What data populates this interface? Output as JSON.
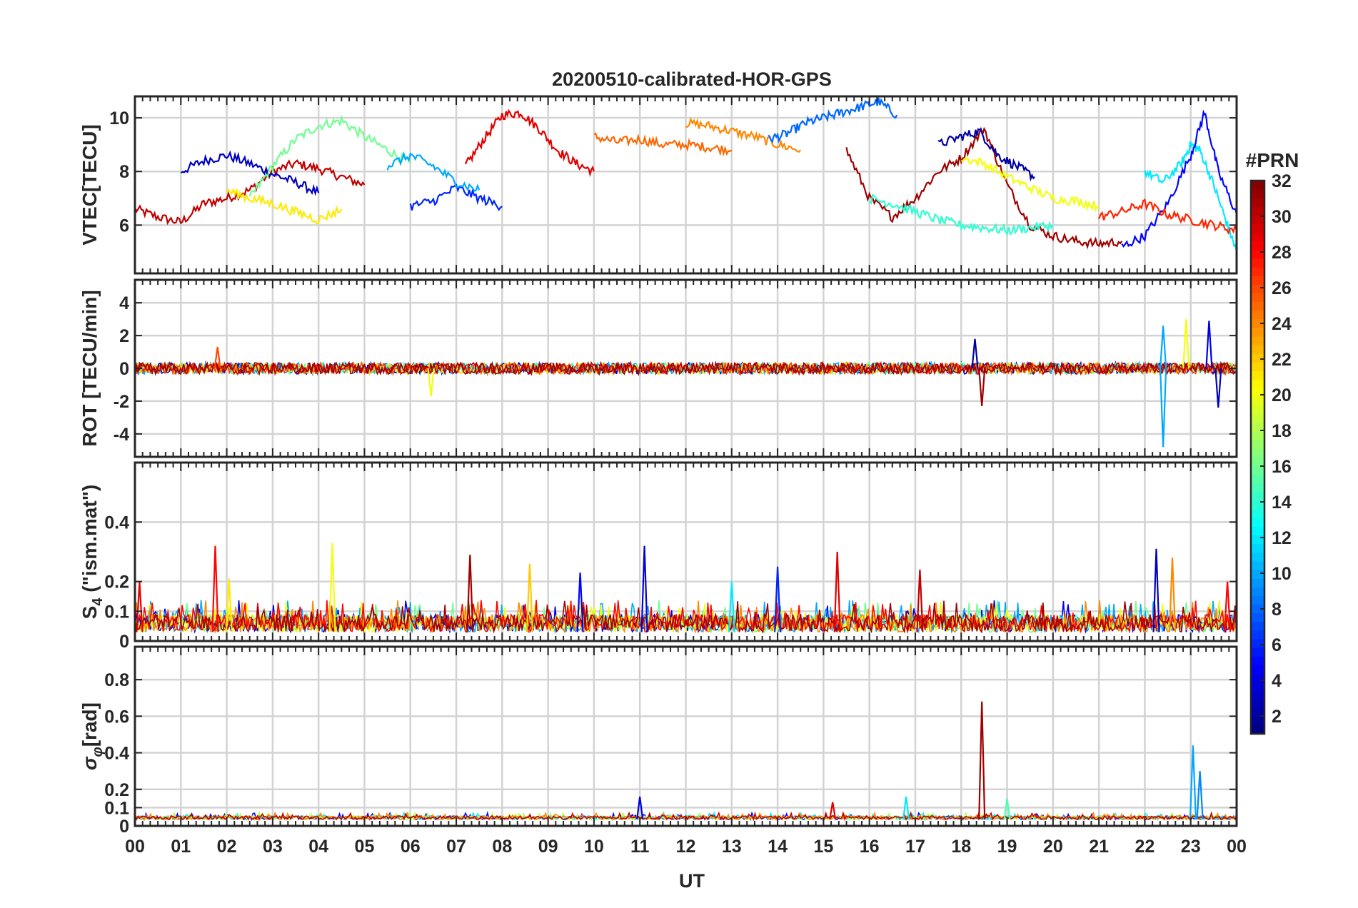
{
  "chart_data": {
    "type": "line",
    "title": "20200510-calibrated-HOR-GPS",
    "xlabel": "UT",
    "x_tick_labels": [
      "00",
      "01",
      "02",
      "03",
      "04",
      "05",
      "06",
      "07",
      "08",
      "09",
      "10",
      "11",
      "12",
      "13",
      "14",
      "15",
      "16",
      "17",
      "18",
      "19",
      "20",
      "21",
      "22",
      "23",
      "00"
    ],
    "x_range_hours": [
      0,
      24
    ],
    "grid": true,
    "colorbar": {
      "title": "#PRN",
      "range": [
        1,
        32
      ],
      "ticks": [
        2,
        4,
        6,
        8,
        10,
        12,
        14,
        16,
        18,
        20,
        22,
        24,
        26,
        28,
        30,
        32
      ],
      "tick_labels": [
        "2",
        "4",
        "6",
        "8",
        "10",
        "12",
        "14",
        "16",
        "18",
        "20",
        "22",
        "24",
        "26",
        "28",
        "30",
        "32"
      ],
      "colormap": "jet",
      "placement": "right"
    },
    "panels": [
      {
        "id": "vtec",
        "ylabel": "VTEC[TECU]",
        "ylim": [
          4.2,
          10.8
        ],
        "yticks": [
          6,
          8,
          10
        ],
        "ytick_labels": [
          "6",
          "8",
          "10"
        ],
        "series": [
          {
            "prn": 30,
            "x": [
              0,
              0.5,
              1,
              1.5,
              2,
              2.5,
              3,
              3.5,
              4,
              4.5,
              5
            ],
            "y": [
              6.6,
              6.3,
              6.1,
              6.8,
              7.0,
              7.3,
              8.0,
              8.3,
              8.1,
              7.8,
              7.5
            ]
          },
          {
            "prn": 3,
            "x": [
              1,
              1.5,
              2,
              2.5,
              3,
              3.5,
              4
            ],
            "y": [
              8.0,
              8.4,
              8.6,
              8.3,
              7.9,
              7.6,
              7.2
            ]
          },
          {
            "prn": 16,
            "x": [
              2.5,
              3,
              3.5,
              4,
              4.5,
              5,
              5.5,
              6
            ],
            "y": [
              7.0,
              8.2,
              9.2,
              9.7,
              9.9,
              9.3,
              8.8,
              8.3
            ]
          },
          {
            "prn": 29,
            "x": [
              7.2,
              7.6,
              8,
              8.4,
              8.8,
              9.2,
              9.6,
              10
            ],
            "y": [
              8.2,
              9.2,
              10.1,
              10.2,
              9.6,
              8.8,
              8.3,
              8.0
            ]
          },
          {
            "prn": 25,
            "x": [
              10,
              10.5,
              11,
              11.5,
              12,
              12.5,
              13
            ],
            "y": [
              9.3,
              9.1,
              9.2,
              9.0,
              9.0,
              8.9,
              8.8
            ]
          },
          {
            "prn": 24,
            "x": [
              12,
              12.5,
              13,
              13.5,
              14,
              14.5
            ],
            "y": [
              9.8,
              9.7,
              9.5,
              9.3,
              9.0,
              8.8
            ]
          },
          {
            "prn": 8,
            "x": [
              13.8,
              14.2,
              14.6,
              15,
              15.4,
              15.8,
              16.2,
              16.6
            ],
            "y": [
              9.2,
              9.4,
              9.8,
              10.0,
              10.2,
              10.4,
              10.6,
              10.1
            ]
          },
          {
            "prn": 31,
            "x": [
              15.5,
              16,
              16.5,
              17,
              17.5,
              18,
              18.5,
              19,
              19.5,
              20,
              20.5,
              21,
              21.5
            ],
            "y": [
              8.8,
              7.0,
              6.3,
              7.0,
              8.0,
              8.5,
              9.6,
              7.5,
              6.0,
              5.6,
              5.4,
              5.3,
              5.4
            ]
          },
          {
            "prn": 2,
            "x": [
              17.5,
              18,
              18.4,
              18.8,
              19.2,
              19.6
            ],
            "y": [
              9.0,
              9.3,
              9.5,
              8.6,
              8.2,
              7.8
            ]
          },
          {
            "prn": 12,
            "x": [
              22,
              22.4,
              22.8,
              23,
              23.2,
              23.5,
              23.8,
              24
            ],
            "y": [
              8.0,
              7.6,
              8.3,
              9.0,
              8.8,
              7.5,
              6.0,
              5.0
            ]
          },
          {
            "prn": 5,
            "x": [
              21.5,
              22,
              22.5,
              23,
              23.3,
              23.6,
              24
            ],
            "y": [
              5.2,
              5.6,
              6.8,
              8.6,
              10.2,
              8.0,
              6.4
            ]
          },
          {
            "prn": 27,
            "x": [
              21,
              21.5,
              22,
              22.5,
              23,
              23.5,
              24
            ],
            "y": [
              6.3,
              6.5,
              6.8,
              6.4,
              6.2,
              6.0,
              5.8
            ]
          },
          {
            "prn": 20,
            "x": [
              18,
              18.5,
              19,
              19.5,
              20,
              20.5,
              21
            ],
            "y": [
              8.5,
              8.3,
              7.8,
              7.4,
              7.0,
              6.9,
              6.7
            ]
          },
          {
            "prn": 14,
            "x": [
              16,
              16.5,
              17,
              17.5,
              18,
              18.5,
              19,
              19.5,
              20
            ],
            "y": [
              7.0,
              6.8,
              6.5,
              6.2,
              6.0,
              5.9,
              5.8,
              5.9,
              6.0
            ]
          },
          {
            "prn": 6,
            "x": [
              6,
              6.5,
              7,
              7.5,
              8
            ],
            "y": [
              6.7,
              6.9,
              7.4,
              7.0,
              6.7
            ]
          },
          {
            "prn": 10,
            "x": [
              5.5,
              6,
              6.5,
              7,
              7.5
            ],
            "y": [
              8.2,
              8.6,
              8.2,
              7.6,
              7.3
            ]
          },
          {
            "prn": 21,
            "x": [
              2,
              2.5,
              3,
              3.5,
              4,
              4.5
            ],
            "y": [
              7.3,
              7.0,
              6.8,
              6.5,
              6.2,
              6.6
            ]
          }
        ]
      },
      {
        "id": "rot",
        "ylabel": "ROT [TECU/min]",
        "ylim": [
          -5.4,
          5.4
        ],
        "yticks": [
          -4,
          -2,
          0,
          2,
          4
        ],
        "ytick_labels": [
          "-4",
          "-2",
          "0",
          "2",
          "4"
        ],
        "series_summary": "all PRNs within about ±0.5 most of the day",
        "spikes": [
          {
            "x": 1.8,
            "y": 1.3,
            "prn": 26
          },
          {
            "x": 6.45,
            "y": -1.7,
            "prn": 20
          },
          {
            "x": 18.45,
            "y": -2.3,
            "prn": 31
          },
          {
            "x": 18.3,
            "y": 1.8,
            "prn": 2
          },
          {
            "x": 22.4,
            "y": -4.8,
            "prn": 10
          },
          {
            "x": 22.4,
            "y": 2.6,
            "prn": 10
          },
          {
            "x": 22.9,
            "y": 3.0,
            "prn": 20
          },
          {
            "x": 23.4,
            "y": 2.9,
            "prn": 4
          },
          {
            "x": 23.6,
            "y": -2.4,
            "prn": 3
          }
        ]
      },
      {
        "id": "s4",
        "ylabel": "S4 (\"ism.mat\")",
        "ylabel_main": "S",
        "ylabel_sub": "4",
        "ylabel_rest": " (\"ism.mat\")",
        "ylim": [
          0,
          0.6
        ],
        "yticks": [
          0,
          0.1,
          0.2,
          0.4
        ],
        "ytick_labels": [
          "0",
          "0.1",
          "0.2",
          "0.4"
        ],
        "series_summary": "background levels 0.02–0.08",
        "spikes": [
          {
            "x": 0.1,
            "y": 0.2,
            "prn": 29
          },
          {
            "x": 1.75,
            "y": 0.32,
            "prn": 28
          },
          {
            "x": 2.05,
            "y": 0.21,
            "prn": 21
          },
          {
            "x": 4.3,
            "y": 0.33,
            "prn": 20
          },
          {
            "x": 7.3,
            "y": 0.29,
            "prn": 31
          },
          {
            "x": 8.6,
            "y": 0.26,
            "prn": 22
          },
          {
            "x": 9.7,
            "y": 0.23,
            "prn": 5
          },
          {
            "x": 11.1,
            "y": 0.32,
            "prn": 4
          },
          {
            "x": 13.0,
            "y": 0.2,
            "prn": 12
          },
          {
            "x": 14.0,
            "y": 0.25,
            "prn": 6
          },
          {
            "x": 15.3,
            "y": 0.3,
            "prn": 29
          },
          {
            "x": 17.1,
            "y": 0.24,
            "prn": 30
          },
          {
            "x": 22.25,
            "y": 0.31,
            "prn": 3
          },
          {
            "x": 22.6,
            "y": 0.28,
            "prn": 24
          },
          {
            "x": 23.8,
            "y": 0.2,
            "prn": 28
          }
        ]
      },
      {
        "id": "sigma_phi",
        "ylabel": "σφ[rad]",
        "ylabel_main": "σ",
        "ylabel_sub": "φ",
        "ylabel_rest": "[rad]",
        "ylim": [
          0,
          0.98
        ],
        "yticks": [
          0,
          0.1,
          0.2,
          0.4,
          0.6,
          0.8
        ],
        "ytick_labels": [
          "0",
          "0.1",
          "0.2",
          "0.4",
          "0.6",
          "0.8"
        ],
        "series_summary": "background around 0.03–0.05",
        "spikes": [
          {
            "x": 11.0,
            "y": 0.16,
            "prn": 4
          },
          {
            "x": 15.2,
            "y": 0.13,
            "prn": 29
          },
          {
            "x": 16.8,
            "y": 0.16,
            "prn": 12
          },
          {
            "x": 18.45,
            "y": 0.68,
            "prn": 31
          },
          {
            "x": 19.0,
            "y": 0.15,
            "prn": 15
          },
          {
            "x": 23.05,
            "y": 0.44,
            "prn": 10
          },
          {
            "x": 23.2,
            "y": 0.3,
            "prn": 9
          }
        ]
      }
    ]
  }
}
